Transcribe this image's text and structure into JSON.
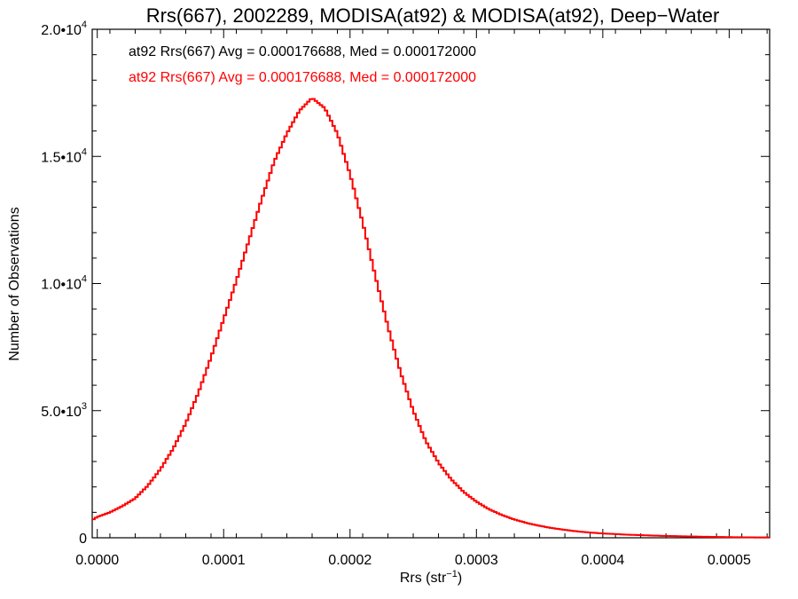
{
  "chart_data": {
    "type": "histogram",
    "title": "Rrs(667), 2002289, MODISA(at92) & MODISA(at92), Deep−Water",
    "xlabel": {
      "base": "Rrs (str",
      "sup": "−1",
      "close": ")"
    },
    "ylabel": "Number of Observations",
    "xlim": [
      -4e-06,
      0.000532
    ],
    "ylim": [
      0,
      20000
    ],
    "x_ticks": [
      {
        "value": 0.0,
        "label": "0.0000"
      },
      {
        "value": 0.0001,
        "label": "0.0001"
      },
      {
        "value": 0.0002,
        "label": "0.0002"
      },
      {
        "value": 0.0003,
        "label": "0.0003"
      },
      {
        "value": 0.0004,
        "label": "0.0004"
      },
      {
        "value": 0.0005,
        "label": "0.0005"
      }
    ],
    "y_ticks": [
      {
        "value": 0,
        "mant": "0",
        "exp": ""
      },
      {
        "value": 5000,
        "mant": "5.0•10",
        "exp": "3"
      },
      {
        "value": 10000,
        "mant": "1.0•10",
        "exp": "4"
      },
      {
        "value": 15000,
        "mant": "1.5•10",
        "exp": "4"
      },
      {
        "value": 20000,
        "mant": "2.0•10",
        "exp": "4"
      }
    ],
    "legend": [
      {
        "text": "at92 Rrs(667) Avg = 0.000176688, Med = 0.000172000",
        "color": "#000000"
      },
      {
        "text": "at92 Rrs(667) Avg = 0.000176688, Med = 0.000172000",
        "color": "#ff0000"
      }
    ],
    "grid": false,
    "series": [
      {
        "color": "#000000",
        "bin_width": 2e-06,
        "bins": [
          {
            "x": -4e-06,
            "y": 700
          },
          {
            "x": 0.0,
            "y": 820
          },
          {
            "x": 1e-05,
            "y": 1000
          },
          {
            "x": 2e-05,
            "y": 1250
          },
          {
            "x": 3e-05,
            "y": 1550
          },
          {
            "x": 4e-05,
            "y": 2050
          },
          {
            "x": 5e-05,
            "y": 2700
          },
          {
            "x": 6e-05,
            "y": 3500
          },
          {
            "x": 7e-05,
            "y": 4500
          },
          {
            "x": 8e-05,
            "y": 5700
          },
          {
            "x": 9e-05,
            "y": 7100
          },
          {
            "x": 0.0001,
            "y": 8600
          },
          {
            "x": 0.00011,
            "y": 10100
          },
          {
            "x": 0.00012,
            "y": 11700
          },
          {
            "x": 0.00013,
            "y": 13300
          },
          {
            "x": 0.00014,
            "y": 14800
          },
          {
            "x": 0.00015,
            "y": 15900
          },
          {
            "x": 0.00016,
            "y": 16800
          },
          {
            "x": 0.00017,
            "y": 17300
          },
          {
            "x": 0.00018,
            "y": 16900
          },
          {
            "x": 0.00019,
            "y": 15900
          },
          {
            "x": 0.0002,
            "y": 14300
          },
          {
            "x": 0.00021,
            "y": 12400
          },
          {
            "x": 0.00022,
            "y": 10300
          },
          {
            "x": 0.00023,
            "y": 8300
          },
          {
            "x": 0.00024,
            "y": 6500
          },
          {
            "x": 0.00025,
            "y": 5000
          },
          {
            "x": 0.00026,
            "y": 3800
          },
          {
            "x": 0.00027,
            "y": 2950
          },
          {
            "x": 0.00028,
            "y": 2300
          },
          {
            "x": 0.00029,
            "y": 1800
          },
          {
            "x": 0.0003,
            "y": 1420
          },
          {
            "x": 0.00031,
            "y": 1120
          },
          {
            "x": 0.00032,
            "y": 900
          },
          {
            "x": 0.00033,
            "y": 720
          },
          {
            "x": 0.00034,
            "y": 580
          },
          {
            "x": 0.00035,
            "y": 470
          },
          {
            "x": 0.00036,
            "y": 380
          },
          {
            "x": 0.00037,
            "y": 310
          },
          {
            "x": 0.00038,
            "y": 250
          },
          {
            "x": 0.00039,
            "y": 205
          },
          {
            "x": 0.0004,
            "y": 170
          },
          {
            "x": 0.00042,
            "y": 120
          },
          {
            "x": 0.00044,
            "y": 85
          },
          {
            "x": 0.00046,
            "y": 60
          },
          {
            "x": 0.00048,
            "y": 40
          },
          {
            "x": 0.0005,
            "y": 25
          },
          {
            "x": 0.00052,
            "y": 15
          },
          {
            "x": 0.000532,
            "y": 15
          }
        ]
      },
      {
        "color": "#ff0000",
        "bin_width": 2e-06,
        "bins": [
          {
            "x": -4e-06,
            "y": 700
          },
          {
            "x": 0.0,
            "y": 820
          },
          {
            "x": 1e-05,
            "y": 1000
          },
          {
            "x": 2e-05,
            "y": 1250
          },
          {
            "x": 3e-05,
            "y": 1550
          },
          {
            "x": 4e-05,
            "y": 2050
          },
          {
            "x": 5e-05,
            "y": 2700
          },
          {
            "x": 6e-05,
            "y": 3500
          },
          {
            "x": 7e-05,
            "y": 4500
          },
          {
            "x": 8e-05,
            "y": 5700
          },
          {
            "x": 9e-05,
            "y": 7100
          },
          {
            "x": 0.0001,
            "y": 8600
          },
          {
            "x": 0.00011,
            "y": 10100
          },
          {
            "x": 0.00012,
            "y": 11700
          },
          {
            "x": 0.00013,
            "y": 13300
          },
          {
            "x": 0.00014,
            "y": 14800
          },
          {
            "x": 0.00015,
            "y": 15900
          },
          {
            "x": 0.00016,
            "y": 16800
          },
          {
            "x": 0.00017,
            "y": 17300
          },
          {
            "x": 0.00018,
            "y": 16900
          },
          {
            "x": 0.00019,
            "y": 15900
          },
          {
            "x": 0.0002,
            "y": 14300
          },
          {
            "x": 0.00021,
            "y": 12400
          },
          {
            "x": 0.00022,
            "y": 10300
          },
          {
            "x": 0.00023,
            "y": 8300
          },
          {
            "x": 0.00024,
            "y": 6500
          },
          {
            "x": 0.00025,
            "y": 5000
          },
          {
            "x": 0.00026,
            "y": 3800
          },
          {
            "x": 0.00027,
            "y": 2950
          },
          {
            "x": 0.00028,
            "y": 2300
          },
          {
            "x": 0.00029,
            "y": 1800
          },
          {
            "x": 0.0003,
            "y": 1420
          },
          {
            "x": 0.00031,
            "y": 1120
          },
          {
            "x": 0.00032,
            "y": 900
          },
          {
            "x": 0.00033,
            "y": 720
          },
          {
            "x": 0.00034,
            "y": 580
          },
          {
            "x": 0.00035,
            "y": 470
          },
          {
            "x": 0.00036,
            "y": 380
          },
          {
            "x": 0.00037,
            "y": 310
          },
          {
            "x": 0.00038,
            "y": 250
          },
          {
            "x": 0.00039,
            "y": 205
          },
          {
            "x": 0.0004,
            "y": 170
          },
          {
            "x": 0.00042,
            "y": 120
          },
          {
            "x": 0.00044,
            "y": 85
          },
          {
            "x": 0.00046,
            "y": 60
          },
          {
            "x": 0.00048,
            "y": 40
          },
          {
            "x": 0.0005,
            "y": 25
          },
          {
            "x": 0.00052,
            "y": 15
          },
          {
            "x": 0.000532,
            "y": 15
          }
        ]
      }
    ]
  }
}
